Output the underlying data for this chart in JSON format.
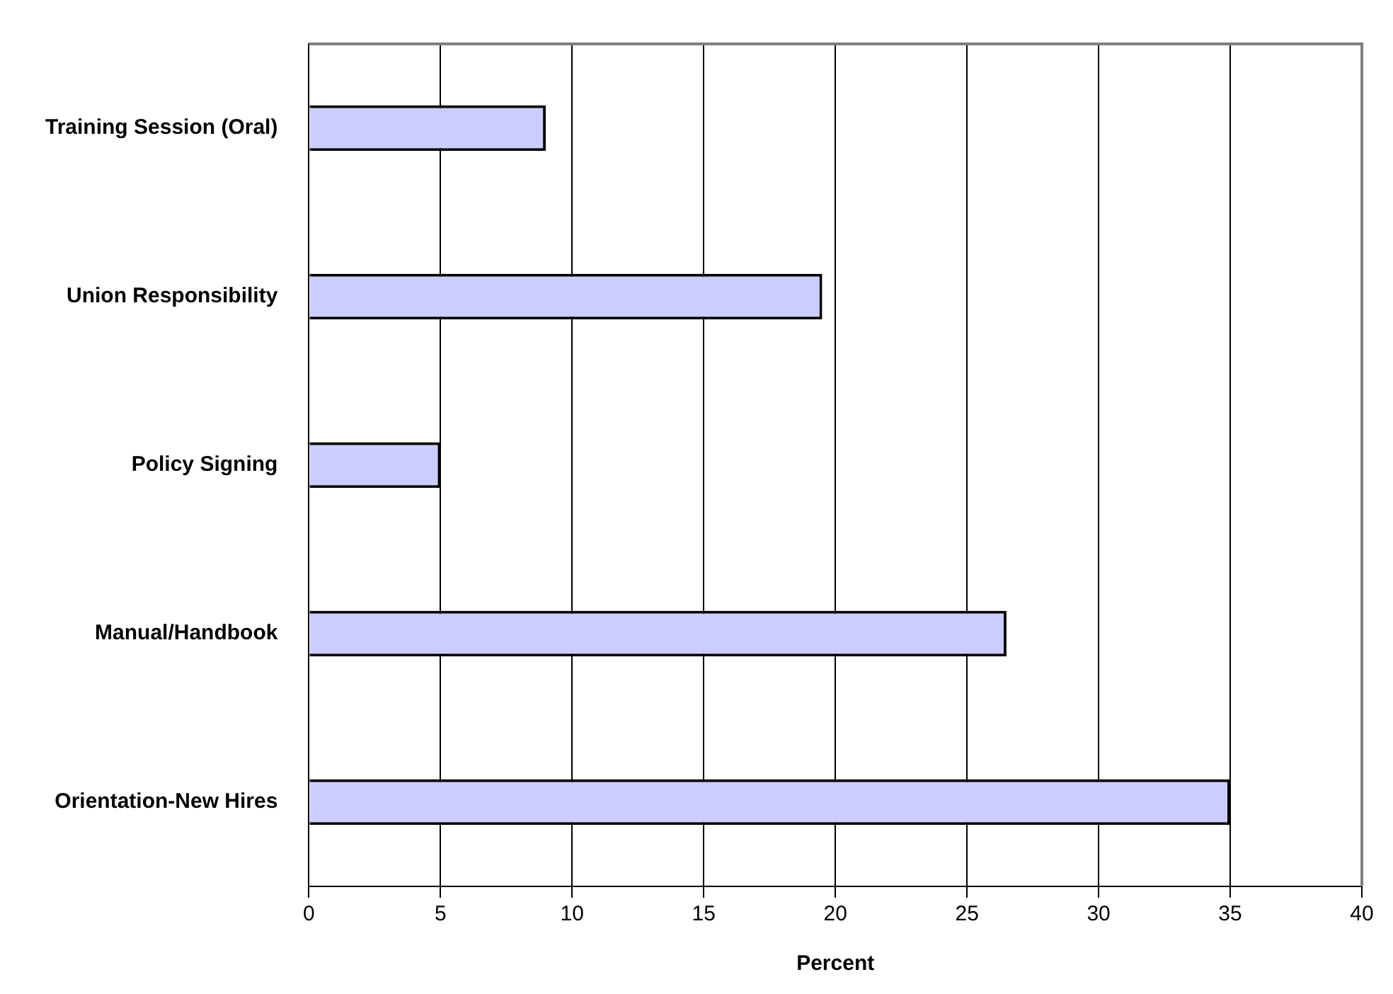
{
  "chart_data": {
    "type": "bar",
    "orientation": "horizontal",
    "categories": [
      "Training Session (Oral)",
      "Union Responsibility",
      "Policy Signing",
      "Manual/Handbook",
      "Orientation-New Hires"
    ],
    "values": [
      9,
      19.5,
      5,
      26.5,
      35
    ],
    "color": "#ccccff",
    "xlabel": "Percent",
    "xlim": [
      0,
      40
    ],
    "xticks": [
      0,
      5,
      10,
      15,
      20,
      25,
      30,
      35,
      40
    ],
    "grid": "x",
    "legend": false
  }
}
